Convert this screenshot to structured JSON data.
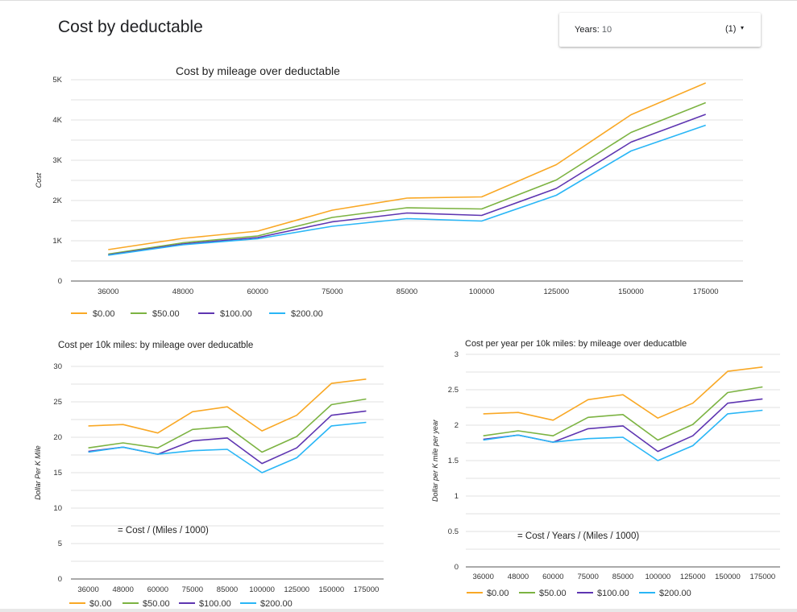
{
  "page": {
    "title": "Cost by deductable"
  },
  "filter": {
    "label": "Years",
    "value": "10",
    "count": "(1)",
    "caret": "▾"
  },
  "colors": {
    "s0": "#f9a825",
    "s50": "#7cb342",
    "s100": "#5e35b1",
    "s200": "#29b6f6"
  },
  "chart_data": [
    {
      "type": "line",
      "title": "Cost by mileage over deductable",
      "xlabel": "",
      "ylabel": "Cost",
      "categories": [
        "36000",
        "48000",
        "60000",
        "75000",
        "85000",
        "100000",
        "125000",
        "150000",
        "175000"
      ],
      "ylim": [
        0,
        5000
      ],
      "yticks": [
        0,
        1000,
        2000,
        3000,
        4000,
        5000
      ],
      "yticklabels": [
        "0",
        "1K",
        "2K",
        "3K",
        "4K",
        "5K"
      ],
      "grid": true,
      "legend_position": "bottom",
      "series": [
        {
          "name": "$0.00",
          "color": "#f9a825",
          "values": [
            780,
            1060,
            1240,
            1760,
            2060,
            2090,
            2890,
            4130,
            4920
          ]
        },
        {
          "name": "$50.00",
          "color": "#7cb342",
          "values": [
            670,
            950,
            1120,
            1580,
            1820,
            1790,
            2510,
            3690,
            4430
          ]
        },
        {
          "name": "$100.00",
          "color": "#5e35b1",
          "values": [
            650,
            920,
            1080,
            1470,
            1690,
            1630,
            2300,
            3450,
            4140
          ]
        },
        {
          "name": "$200.00",
          "color": "#29b6f6",
          "values": [
            640,
            900,
            1050,
            1360,
            1550,
            1490,
            2130,
            3230,
            3870
          ]
        }
      ]
    },
    {
      "type": "line",
      "title": "Cost per 10k miles: by mileage over deducatble",
      "xlabel": "",
      "ylabel": "Dollar Per K Mile",
      "annotation": "= Cost / (Miles / 1000)",
      "categories": [
        "36000",
        "48000",
        "60000",
        "75000",
        "85000",
        "100000",
        "125000",
        "150000",
        "175000"
      ],
      "ylim": [
        0,
        30
      ],
      "yticks": [
        0,
        5,
        10,
        15,
        20,
        25,
        30
      ],
      "yticklabels": [
        "0",
        "5",
        "10",
        "15",
        "20",
        "25",
        "30"
      ],
      "grid": true,
      "legend_position": "bottom",
      "series": [
        {
          "name": "$0.00",
          "color": "#f9a825",
          "values": [
            21.6,
            21.8,
            20.6,
            23.6,
            24.3,
            20.9,
            23.1,
            27.6,
            28.2
          ]
        },
        {
          "name": "$50.00",
          "color": "#7cb342",
          "values": [
            18.5,
            19.2,
            18.5,
            21.1,
            21.5,
            17.9,
            20.1,
            24.6,
            25.4
          ]
        },
        {
          "name": "$100.00",
          "color": "#5e35b1",
          "values": [
            18.0,
            18.6,
            17.6,
            19.5,
            19.9,
            16.3,
            18.5,
            23.1,
            23.7
          ]
        },
        {
          "name": "$200.00",
          "color": "#29b6f6",
          "values": [
            17.9,
            18.6,
            17.6,
            18.1,
            18.3,
            15.0,
            17.1,
            21.6,
            22.1
          ]
        }
      ]
    },
    {
      "type": "line",
      "title": "Cost per year per 10k miles: by mileage over deducatble",
      "xlabel": "",
      "ylabel": "Dollar per K mile per year",
      "annotation": "= Cost / Years / (Miles / 1000)",
      "categories": [
        "36000",
        "48000",
        "60000",
        "75000",
        "85000",
        "100000",
        "125000",
        "150000",
        "175000"
      ],
      "ylim": [
        0,
        3
      ],
      "yticks": [
        0,
        0.5,
        1,
        1.5,
        2,
        2.5,
        3
      ],
      "yticklabels": [
        "0",
        "0.5",
        "1",
        "1.5",
        "2",
        "2.5",
        "3"
      ],
      "grid": true,
      "legend_position": "bottom",
      "series": [
        {
          "name": "$0.00",
          "color": "#f9a825",
          "values": [
            2.16,
            2.18,
            2.07,
            2.36,
            2.43,
            2.1,
            2.31,
            2.76,
            2.82
          ]
        },
        {
          "name": "$50.00",
          "color": "#7cb342",
          "values": [
            1.85,
            1.92,
            1.85,
            2.11,
            2.15,
            1.79,
            2.01,
            2.46,
            2.54
          ]
        },
        {
          "name": "$100.00",
          "color": "#5e35b1",
          "values": [
            1.8,
            1.86,
            1.76,
            1.95,
            1.99,
            1.63,
            1.85,
            2.31,
            2.37
          ]
        },
        {
          "name": "$200.00",
          "color": "#29b6f6",
          "values": [
            1.79,
            1.86,
            1.76,
            1.81,
            1.83,
            1.5,
            1.71,
            2.16,
            2.21
          ]
        }
      ]
    }
  ]
}
